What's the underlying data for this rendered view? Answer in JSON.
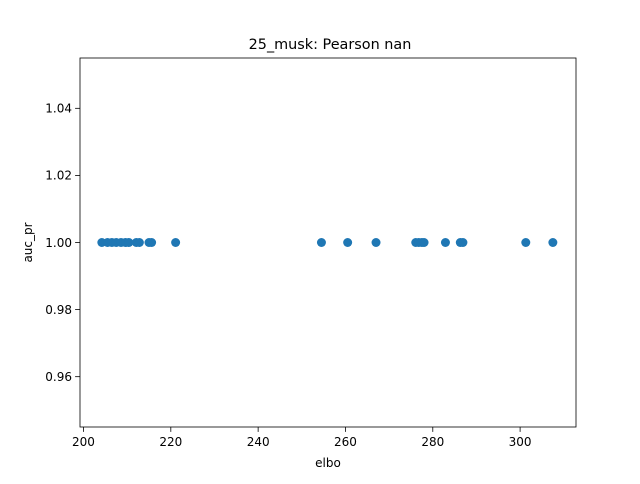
{
  "chart_data": {
    "type": "scatter",
    "title": "25_musk: Pearson nan",
    "xlabel": "elbo",
    "ylabel": "auc_pr",
    "xlim": [
      199.2,
      312.8
    ],
    "ylim": [
      0.945,
      1.055
    ],
    "xticks": [
      200,
      220,
      240,
      260,
      280,
      300
    ],
    "xtick_labels": [
      "200",
      "220",
      "240",
      "260",
      "280",
      "300"
    ],
    "yticks": [
      0.96,
      0.98,
      1.0,
      1.02,
      1.04
    ],
    "ytick_labels": [
      "0.96",
      "0.98",
      "1.00",
      "1.02",
      "1.04"
    ],
    "grid": false,
    "legend": "none",
    "point_color": "#1f77b4",
    "x": [
      204.2,
      205.5,
      206.5,
      207.5,
      208.6,
      209.6,
      210.4,
      212.1,
      212.8,
      215.0,
      215.6,
      221.1,
      254.5,
      260.5,
      267.0,
      276.1,
      276.8,
      277.5,
      278.0,
      282.9,
      286.3,
      286.9,
      301.3,
      307.5
    ],
    "y": [
      1.0,
      1.0,
      1.0,
      1.0,
      1.0,
      1.0,
      1.0,
      1.0,
      1.0,
      1.0,
      1.0,
      1.0,
      1.0,
      1.0,
      1.0,
      1.0,
      1.0,
      1.0,
      1.0,
      1.0,
      1.0,
      1.0,
      1.0,
      1.0
    ]
  }
}
